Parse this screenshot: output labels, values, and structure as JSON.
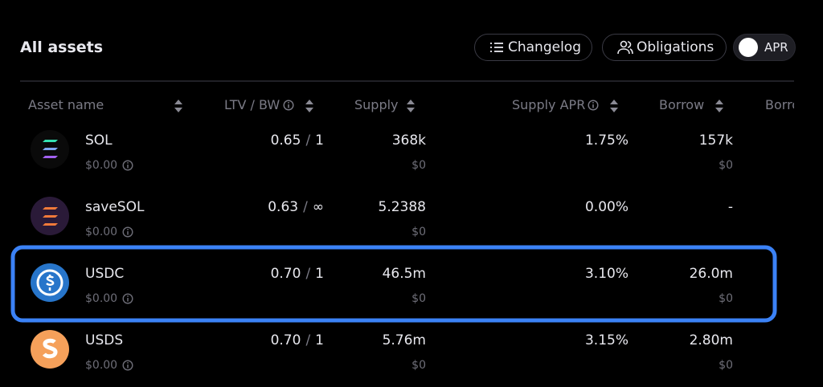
{
  "header": {
    "title": "All assets",
    "buttons": [
      "Changelog",
      "Obligations"
    ],
    "toggle": "APR"
  },
  "table": {
    "columns": [
      "Asset name",
      "LTV / BW",
      "Supply",
      "Supply APR",
      "Borrow",
      "Borro"
    ],
    "separator": "/",
    "rows": [
      {
        "name": "SOL",
        "price": "$0.00",
        "ltv": "0.65",
        "bw": "1",
        "supply": "368k",
        "supply_usd": "$0",
        "supply_apr": "1.75%",
        "borrow": "157k",
        "borrow_usd": "$0"
      },
      {
        "name": "saveSOL",
        "price": "$0.00",
        "ltv": "0.63",
        "bw": "∞",
        "supply": "5.2388",
        "supply_usd": "$0",
        "supply_apr": "0.00%",
        "borrow": "-"
      },
      {
        "name": "USDC",
        "price": "$0.00",
        "ltv": "0.70",
        "bw": "1",
        "supply": "46.5m",
        "supply_usd": "$0",
        "supply_apr": "3.10%",
        "borrow": "26.0m",
        "borrow_usd": "$0"
      },
      {
        "name": "USDS",
        "price": "$0.00",
        "ltv": "0.70",
        "bw": "1",
        "supply": "5.76m",
        "supply_usd": "$0",
        "supply_apr": "3.15%",
        "borrow": "2.80m",
        "borrow_usd": "$0"
      }
    ]
  }
}
